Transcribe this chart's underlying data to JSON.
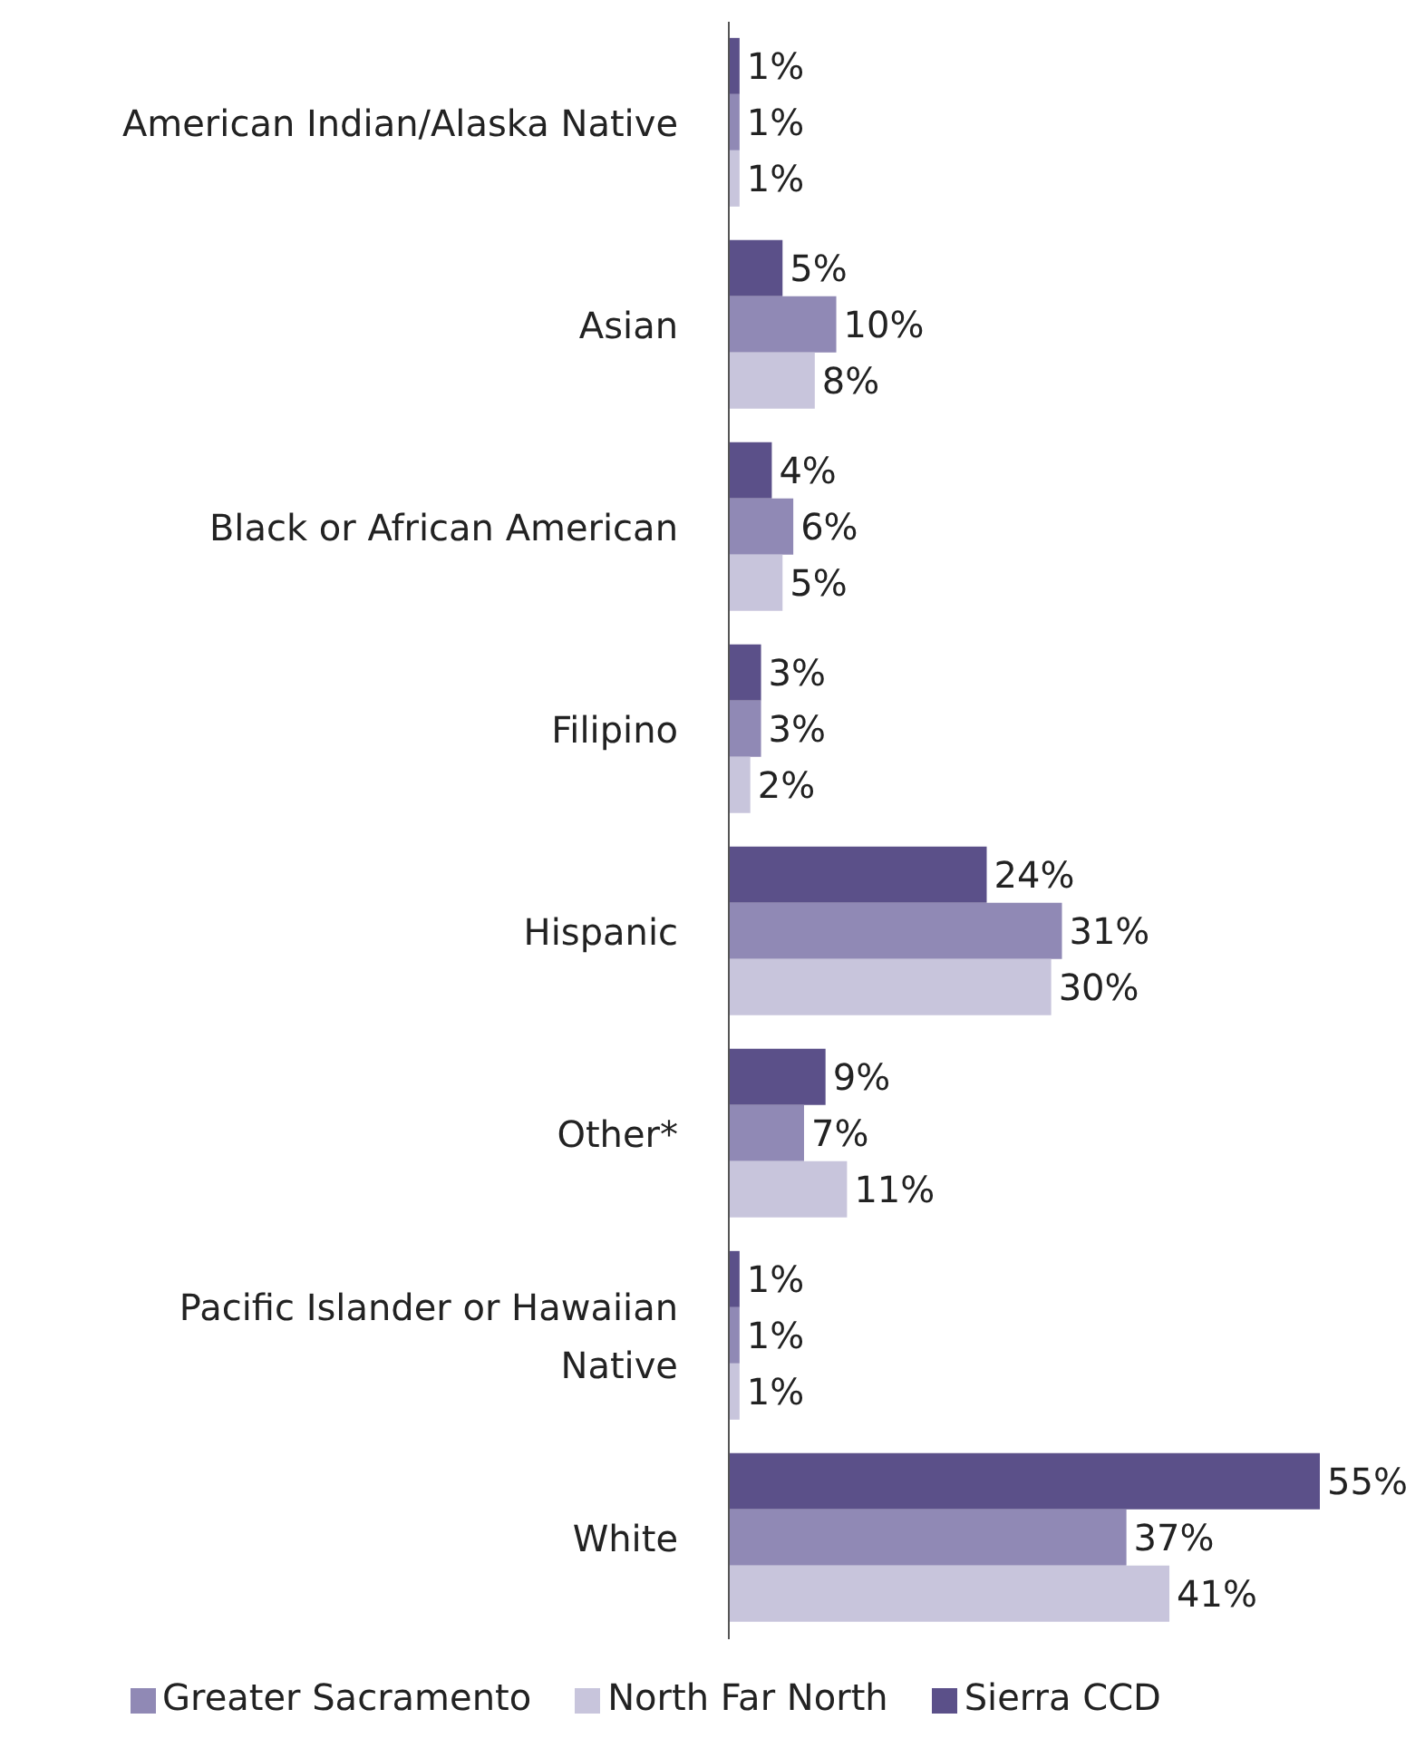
{
  "chart_data": {
    "type": "bar",
    "orientation": "horizontal",
    "categories": [
      "American Indian/Alaska Native",
      "Asian",
      "Black or African American",
      "Filipino",
      "Hispanic",
      "Other*",
      "Pacific Islander or Hawaiian Native",
      "White"
    ],
    "series": [
      {
        "name": "Sierra CCD",
        "color": "#5b5089",
        "values": [
          1,
          5,
          4,
          3,
          24,
          9,
          1,
          55
        ],
        "value_labels": [
          "1%",
          "5%",
          "4%",
          "3%",
          "24%",
          "9%",
          "1%",
          "55%"
        ]
      },
      {
        "name": "Greater Sacramento",
        "color": "#9089b5",
        "values": [
          1,
          10,
          6,
          3,
          31,
          7,
          1,
          37
        ],
        "value_labels": [
          "1%",
          "10%",
          "6%",
          "3%",
          "31%",
          "7%",
          "1%",
          "37%"
        ]
      },
      {
        "name": "North Far North",
        "color": "#c8c5dc",
        "values": [
          1,
          8,
          5,
          2,
          30,
          11,
          1,
          41
        ],
        "value_labels": [
          "1%",
          "8%",
          "5%",
          "2%",
          "30%",
          "11%",
          "1%",
          "41%"
        ]
      }
    ],
    "legend": "bottom",
    "grid": false
  }
}
